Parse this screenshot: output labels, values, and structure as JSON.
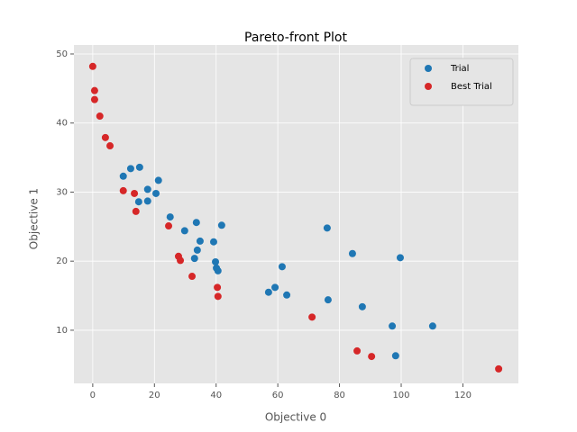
{
  "chart_data": {
    "type": "scatter",
    "title": "Pareto-front Plot",
    "x_label": "Objective 0",
    "y_label": "Objective 1",
    "xlim": [
      -6.1,
      138.0
    ],
    "ylim": [
      2.3,
      51.3
    ],
    "xticks": [
      0,
      20,
      40,
      60,
      80,
      100,
      120
    ],
    "yticks": [
      10,
      20,
      30,
      40,
      50
    ],
    "grid": true,
    "legend": "upper right",
    "series": [
      {
        "name": "Trial",
        "color": "#1f77b4",
        "x": [
          9.9,
          12.3,
          15.2,
          21.3,
          17.8,
          20.5,
          14.9,
          17.8,
          25.1,
          33.6,
          41.8,
          29.8,
          34.8,
          39.2,
          33.9,
          33.0,
          39.8,
          40.1,
          40.6,
          76.0,
          84.2,
          99.7,
          61.4,
          59.1,
          57.0,
          62.9,
          76.3,
          87.4,
          97.1,
          110.2,
          98.2
        ],
        "values": [
          32.3,
          33.4,
          33.6,
          31.7,
          30.4,
          29.8,
          28.6,
          28.7,
          26.4,
          25.6,
          25.2,
          24.4,
          22.9,
          22.8,
          21.6,
          20.4,
          19.9,
          19.0,
          18.6,
          24.8,
          21.1,
          20.5,
          19.2,
          16.2,
          15.5,
          15.1,
          14.4,
          13.4,
          10.6,
          10.6,
          6.3
        ]
      },
      {
        "name": "Best Trial",
        "color": "#d62728",
        "x": [
          0,
          0.6,
          0.6,
          2.3,
          4.1,
          5.6,
          9.9,
          13.5,
          14.0,
          24.6,
          27.8,
          28.4,
          32.2,
          40.4,
          40.6,
          71.1,
          85.7,
          90.4,
          131.6
        ],
        "values": [
          48.2,
          44.7,
          43.4,
          41.0,
          37.9,
          36.7,
          30.2,
          29.8,
          27.2,
          25.1,
          20.7,
          20.1,
          17.8,
          16.2,
          14.9,
          11.9,
          7.0,
          6.2,
          4.4
        ]
      }
    ]
  }
}
